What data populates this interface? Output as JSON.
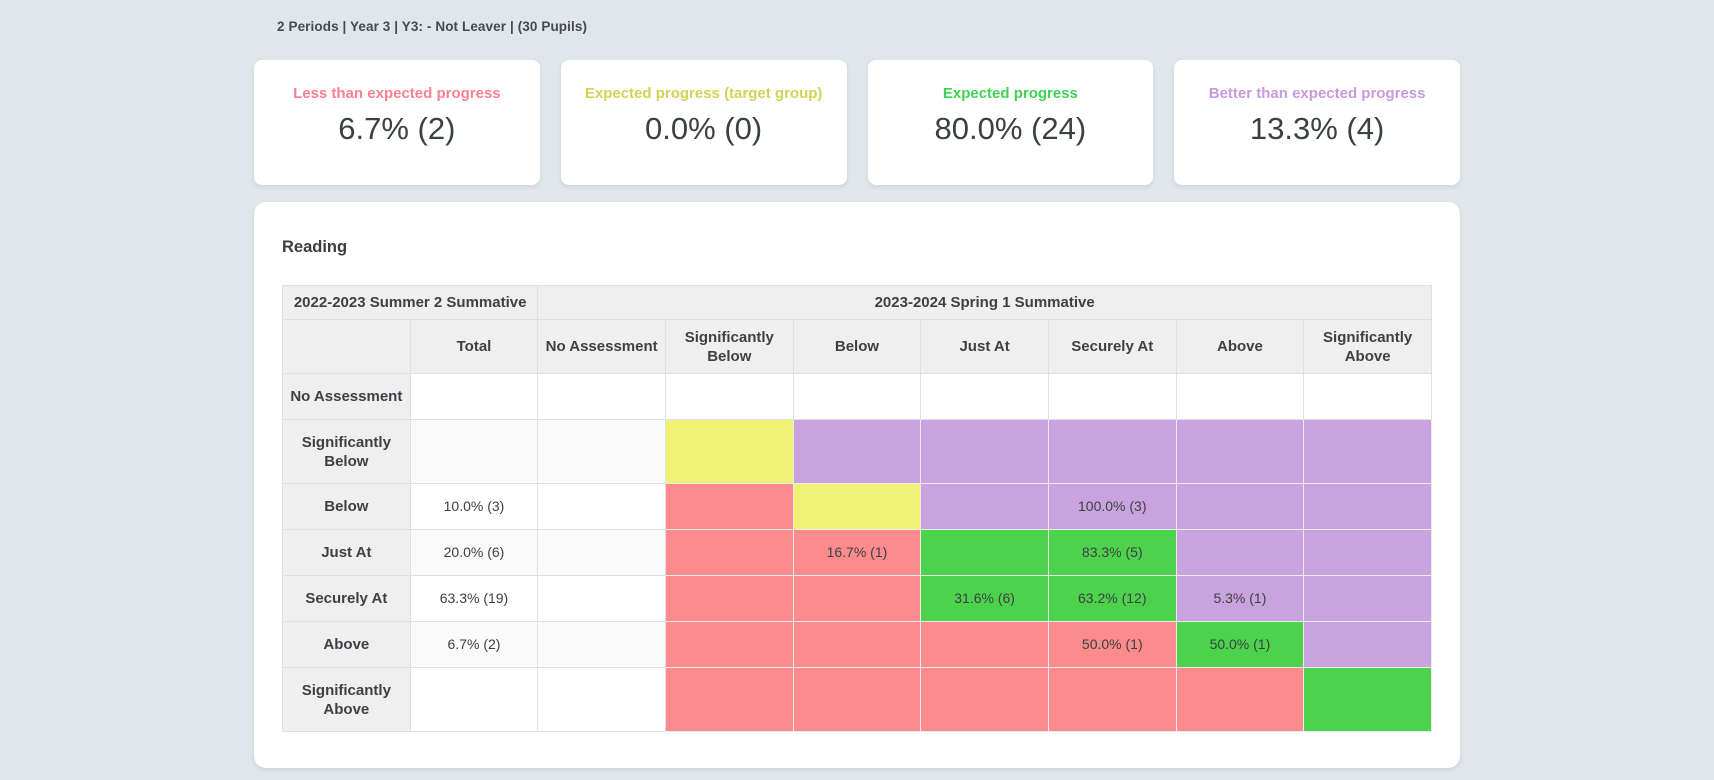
{
  "breadcrumb": {
    "text": "2 Periods | Year 3 | Y3: - Not Leaver | (30 Pupils)"
  },
  "summary_cards": [
    {
      "label": "Less than expected progress",
      "value": "6.7% (2)",
      "color": "#f9818f"
    },
    {
      "label": "Expected progress (target group)",
      "value": "0.0% (0)",
      "color": "#d2d255"
    },
    {
      "label": "Expected progress",
      "value": "80.0% (24)",
      "color": "#3fd354"
    },
    {
      "label": "Better than expected progress",
      "value": "13.3% (4)",
      "color": "#c79ade"
    }
  ],
  "matrix": {
    "title": "Reading",
    "prior_period_label": "2022-2023 Summer 2 Summative",
    "current_period_label": "2023-2024 Spring 1 Summative",
    "column_headers": [
      "",
      "Total",
      "No Assessment",
      "Significantly Below",
      "Below",
      "Just At",
      "Securely At",
      "Above",
      "Significantly Above"
    ],
    "cell_colors": {
      "red": "#fb8b8d",
      "yellow": "#f0f276",
      "green": "#4dd24d",
      "purple": "#c9a3de"
    },
    "rows": [
      {
        "label": "No Assessment",
        "total": "",
        "cells": [
          {
            "value": "",
            "color": "none"
          },
          {
            "value": "",
            "color": "none"
          },
          {
            "value": "",
            "color": "none"
          },
          {
            "value": "",
            "color": "none"
          },
          {
            "value": "",
            "color": "none"
          },
          {
            "value": "",
            "color": "none"
          },
          {
            "value": "",
            "color": "none"
          }
        ]
      },
      {
        "label": "Significantly Below",
        "total": "",
        "cells": [
          {
            "value": "",
            "color": "none"
          },
          {
            "value": "",
            "color": "yellow"
          },
          {
            "value": "",
            "color": "purple"
          },
          {
            "value": "",
            "color": "purple"
          },
          {
            "value": "",
            "color": "purple"
          },
          {
            "value": "",
            "color": "purple"
          },
          {
            "value": "",
            "color": "purple"
          }
        ]
      },
      {
        "label": "Below",
        "total": "10.0% (3)",
        "cells": [
          {
            "value": "",
            "color": "none"
          },
          {
            "value": "",
            "color": "red"
          },
          {
            "value": "",
            "color": "yellow"
          },
          {
            "value": "",
            "color": "purple"
          },
          {
            "value": "100.0% (3)",
            "color": "purple"
          },
          {
            "value": "",
            "color": "purple"
          },
          {
            "value": "",
            "color": "purple"
          }
        ]
      },
      {
        "label": "Just At",
        "total": "20.0% (6)",
        "cells": [
          {
            "value": "",
            "color": "none"
          },
          {
            "value": "",
            "color": "red"
          },
          {
            "value": "16.7% (1)",
            "color": "red"
          },
          {
            "value": "",
            "color": "green"
          },
          {
            "value": "83.3% (5)",
            "color": "green"
          },
          {
            "value": "",
            "color": "purple"
          },
          {
            "value": "",
            "color": "purple"
          }
        ]
      },
      {
        "label": "Securely At",
        "total": "63.3% (19)",
        "cells": [
          {
            "value": "",
            "color": "none"
          },
          {
            "value": "",
            "color": "red"
          },
          {
            "value": "",
            "color": "red"
          },
          {
            "value": "31.6% (6)",
            "color": "green"
          },
          {
            "value": "63.2% (12)",
            "color": "green"
          },
          {
            "value": "5.3% (1)",
            "color": "purple"
          },
          {
            "value": "",
            "color": "purple"
          }
        ]
      },
      {
        "label": "Above",
        "total": "6.7% (2)",
        "cells": [
          {
            "value": "",
            "color": "none"
          },
          {
            "value": "",
            "color": "red"
          },
          {
            "value": "",
            "color": "red"
          },
          {
            "value": "",
            "color": "red"
          },
          {
            "value": "50.0% (1)",
            "color": "red"
          },
          {
            "value": "50.0% (1)",
            "color": "green"
          },
          {
            "value": "",
            "color": "purple"
          }
        ]
      },
      {
        "label": "Significantly Above",
        "total": "",
        "cells": [
          {
            "value": "",
            "color": "none"
          },
          {
            "value": "",
            "color": "red"
          },
          {
            "value": "",
            "color": "red"
          },
          {
            "value": "",
            "color": "red"
          },
          {
            "value": "",
            "color": "red"
          },
          {
            "value": "",
            "color": "red"
          },
          {
            "value": "",
            "color": "green"
          }
        ]
      }
    ]
  }
}
